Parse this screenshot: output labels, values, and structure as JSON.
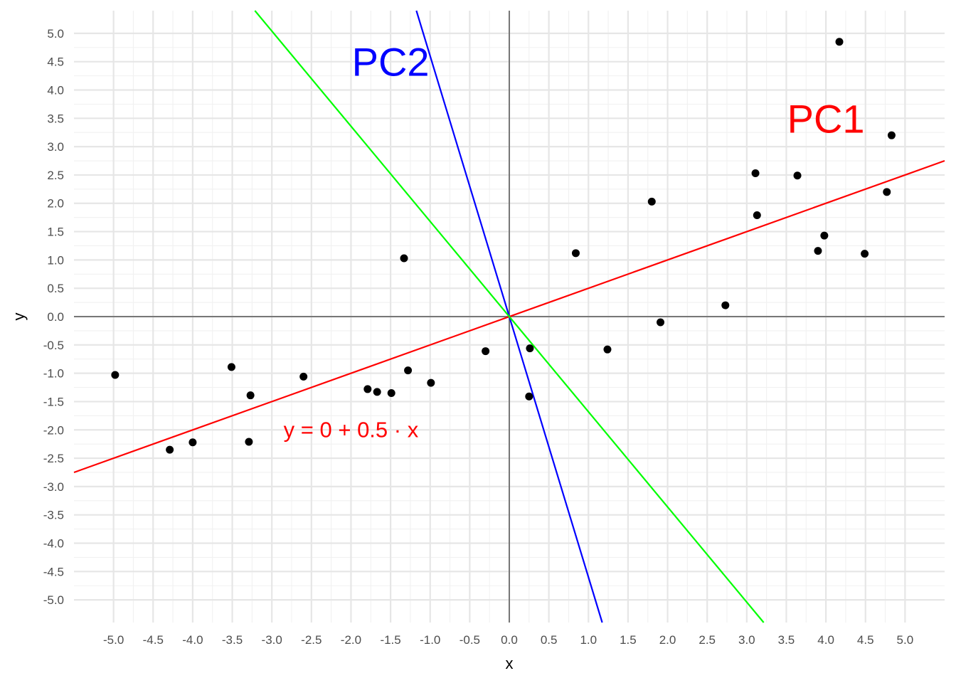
{
  "chart_data": {
    "type": "scatter",
    "xlabel": "x",
    "ylabel": "y",
    "xlim": [
      -5.5,
      5.5
    ],
    "ylim": [
      -5.4,
      5.4
    ],
    "x_ticks": [
      "-5.0",
      "-4.5",
      "-4.0",
      "-3.5",
      "-3.0",
      "-2.5",
      "-2.0",
      "-1.5",
      "-1.0",
      "-0.5",
      "0.0",
      "0.5",
      "1.0",
      "1.5",
      "2.0",
      "2.5",
      "3.0",
      "3.5",
      "4.0",
      "4.5",
      "5.0"
    ],
    "y_ticks": [
      "-5.0",
      "-4.5",
      "-4.0",
      "-3.5",
      "-3.0",
      "-2.5",
      "-2.0",
      "-1.5",
      "-1.0",
      "-0.5",
      "0.0",
      "0.5",
      "1.0",
      "1.5",
      "2.0",
      "2.5",
      "3.0",
      "3.5",
      "4.0",
      "4.5",
      "5.0"
    ],
    "grid": true,
    "points": [
      {
        "x": -4.98,
        "y": -1.03
      },
      {
        "x": -4.29,
        "y": -2.35
      },
      {
        "x": -4.0,
        "y": -2.22
      },
      {
        "x": -3.51,
        "y": -0.89
      },
      {
        "x": -3.27,
        "y": -1.39
      },
      {
        "x": -3.29,
        "y": -2.21
      },
      {
        "x": -2.6,
        "y": -1.06
      },
      {
        "x": -1.79,
        "y": -1.28
      },
      {
        "x": -1.67,
        "y": -1.33
      },
      {
        "x": -1.49,
        "y": -1.35
      },
      {
        "x": -1.28,
        "y": -0.95
      },
      {
        "x": -0.99,
        "y": -1.17
      },
      {
        "x": -1.33,
        "y": 1.03
      },
      {
        "x": -0.3,
        "y": -0.61
      },
      {
        "x": 0.26,
        "y": -0.56
      },
      {
        "x": 0.25,
        "y": -1.41
      },
      {
        "x": 0.84,
        "y": 1.12
      },
      {
        "x": 1.24,
        "y": -0.58
      },
      {
        "x": 1.8,
        "y": 2.03
      },
      {
        "x": 1.91,
        "y": -0.1
      },
      {
        "x": 2.73,
        "y": 0.2
      },
      {
        "x": 3.11,
        "y": 2.53
      },
      {
        "x": 3.13,
        "y": 1.79
      },
      {
        "x": 3.64,
        "y": 2.49
      },
      {
        "x": 3.9,
        "y": 1.16
      },
      {
        "x": 3.98,
        "y": 1.43
      },
      {
        "x": 4.17,
        "y": 4.85
      },
      {
        "x": 4.49,
        "y": 1.11
      },
      {
        "x": 4.77,
        "y": 2.2
      },
      {
        "x": 4.83,
        "y": 3.2
      }
    ],
    "lines": [
      {
        "label": "PC1",
        "slope": 0.5,
        "intercept": 0,
        "color": "#ff0000"
      },
      {
        "label": "PC2",
        "slope": -4.6,
        "intercept": 0,
        "color": "#0000ff"
      },
      {
        "label": "",
        "slope": -1.68,
        "intercept": 0,
        "color": "#00ff00"
      }
    ],
    "annotations": [
      {
        "text": "PC2",
        "x": -1.5,
        "y": 4.5,
        "color": "#0000ff"
      },
      {
        "text": "PC1",
        "x": 4.0,
        "y": 3.5,
        "color": "#ff0000"
      },
      {
        "text": "y = 0 + 0.5 · x",
        "x": -2.0,
        "y": -2.0,
        "color": "#ff0000"
      }
    ]
  }
}
